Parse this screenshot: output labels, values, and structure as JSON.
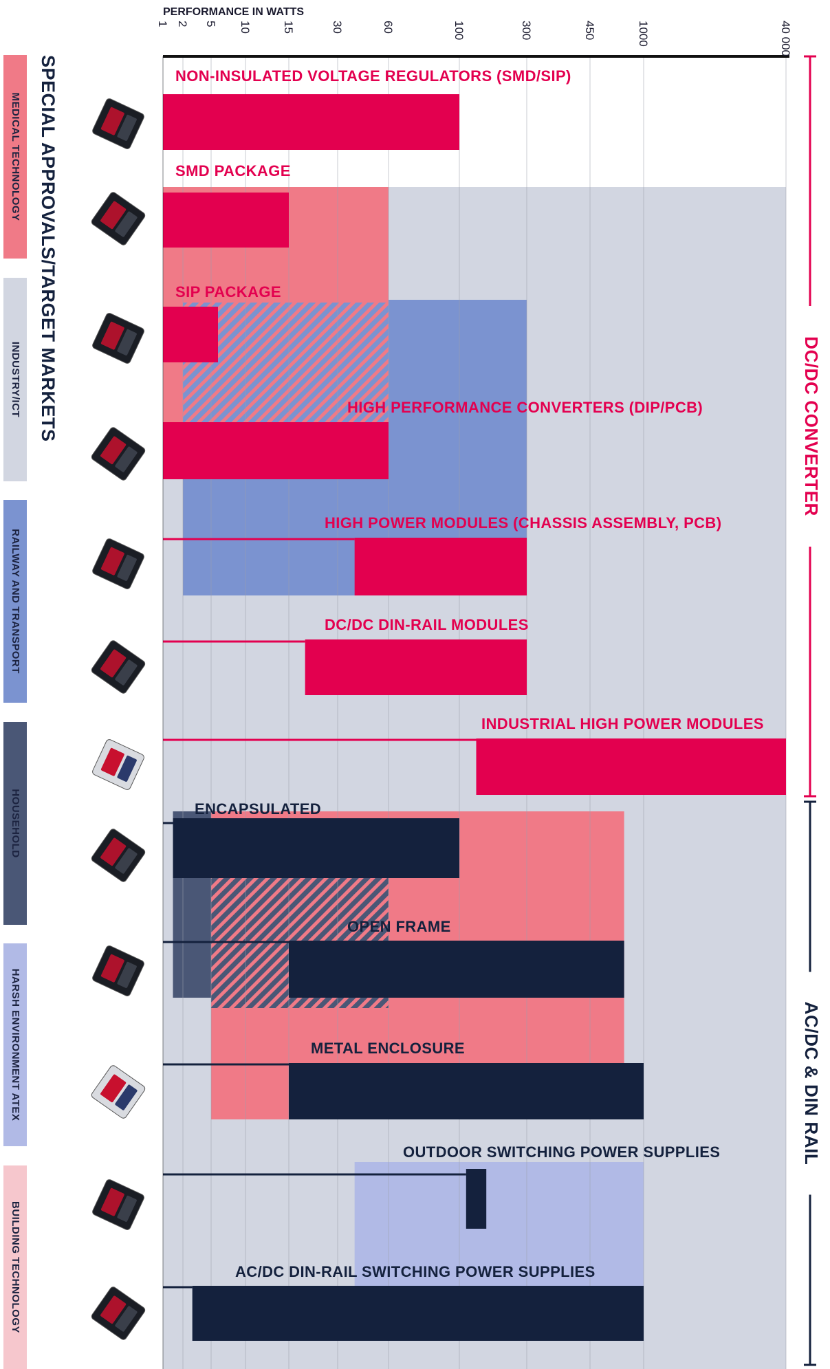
{
  "chart_data": {
    "type": "bar",
    "orientation": "horizontal",
    "axis_title": "PERFORMANCE IN WATTS",
    "ticks": [
      "1",
      "2",
      "5",
      "10",
      "15",
      "30",
      "60",
      "100",
      "300",
      "450",
      "1000",
      "40 000"
    ],
    "side_title": "SPECIAL APPROVALS/TARGET MARKETS",
    "markets": [
      {
        "name": "MEDICAL TECHNOLOGY",
        "color": "#f07a87"
      },
      {
        "name": "INDUSTRY/ICT",
        "color": "#d2d6e1"
      },
      {
        "name": "RAILWAY AND TRANSPORT",
        "color": "#7b93d0"
      },
      {
        "name": "HOUSEHOLD",
        "color": "#4a5776"
      },
      {
        "name": "HARSH ENVIRONMENT ATEX",
        "color": "#b1bae6"
      },
      {
        "name": "BUILDING TECHNOLOGY",
        "color": "#f6c7cd"
      }
    ],
    "groups": [
      {
        "name": "DC/DC CONVERTER",
        "color": "#e3004f"
      },
      {
        "name": "AC/DC & DIN RAIL",
        "color": "#14213d"
      }
    ],
    "series": [
      {
        "name": "NON-INSULATED VOLTAGE REGULATORS (SMD/SIP)",
        "group": "DC/DC CONVERTER",
        "range_w": [
          1,
          100
        ]
      },
      {
        "name": "SMD PACKAGE",
        "group": "DC/DC CONVERTER",
        "range_w": [
          1,
          15
        ]
      },
      {
        "name": "SIP PACKAGE",
        "group": "DC/DC CONVERTER",
        "range_w": [
          1,
          6
        ]
      },
      {
        "name": "HIGH PERFORMANCE CONVERTERS (DIP/PCB)",
        "group": "DC/DC CONVERTER",
        "range_w": [
          1,
          60
        ]
      },
      {
        "name": "HIGH POWER MODULES (CHASSIS ASSEMBLY, PCB)",
        "group": "DC/DC CONVERTER",
        "range_w": [
          40,
          300
        ]
      },
      {
        "name": "DC/DC DIN-RAIL MODULES",
        "group": "DC/DC CONVERTER",
        "range_w": [
          20,
          300
        ]
      },
      {
        "name": "INDUSTRIAL HIGH POWER MODULES",
        "group": "DC/DC CONVERTER",
        "range_w": [
          150,
          40000
        ]
      },
      {
        "name": "ENCAPSULATED",
        "group": "AC/DC & DIN RAIL",
        "range_w": [
          1.5,
          100
        ]
      },
      {
        "name": "OPEN FRAME",
        "group": "AC/DC & DIN RAIL",
        "range_w": [
          15,
          800
        ]
      },
      {
        "name": "METAL ENCLOSURE",
        "group": "AC/DC & DIN RAIL",
        "range_w": [
          15,
          1000
        ]
      },
      {
        "name": "OUTDOOR SWITCHING POWER SUPPLIES",
        "group": "AC/DC & DIN RAIL",
        "range_w": [
          120,
          180
        ]
      },
      {
        "name": "AC/DC DIN-RAIL SWITCHING POWER SUPPLIES",
        "group": "AC/DC & DIN RAIL",
        "range_w": [
          3,
          1000
        ]
      }
    ],
    "approval_areas": [
      {
        "market": "INDUSTRY/ICT",
        "rows": [
          2,
          12
        ],
        "range_w": [
          1,
          40000
        ]
      },
      {
        "market": "MEDICAL TECHNOLOGY",
        "rows": [
          2,
          4
        ],
        "range_w": [
          1,
          60
        ]
      },
      {
        "market": "RAILWAY AND TRANSPORT",
        "rows": [
          3,
          5
        ],
        "range_w": [
          60,
          300
        ]
      },
      {
        "market": "RAILWAY AND TRANSPORT",
        "rows": [
          4,
          5
        ],
        "range_w": [
          2,
          300
        ]
      },
      {
        "market": "MEDICAL TECHNOLOGY",
        "rows": [
          8,
          10
        ],
        "range_w": [
          5,
          800
        ]
      },
      {
        "market": "HOUSEHOLD",
        "rows": [
          8,
          9
        ],
        "range_w": [
          1.5,
          5
        ]
      },
      {
        "market": "HARSH ENVIRONMENT ATEX",
        "rows": [
          11,
          12
        ],
        "range_w": [
          40,
          1000
        ]
      }
    ]
  }
}
